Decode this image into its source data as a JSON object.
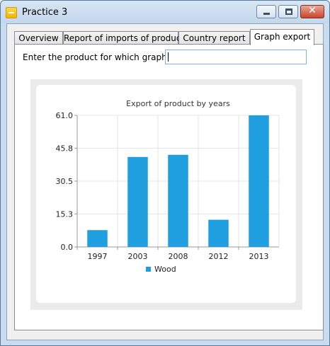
{
  "window": {
    "title": "Practice 3",
    "close_glyph": "✕"
  },
  "tabs": [
    {
      "label": "Overview",
      "active": false
    },
    {
      "label": "Report of imports of product",
      "active": false
    },
    {
      "label": "Country report",
      "active": false
    },
    {
      "label": "Graph export",
      "active": true
    }
  ],
  "form": {
    "prompt": "Enter the product for which graph for:",
    "input_value": ""
  },
  "colors": {
    "bar": "#1f9fe0",
    "grid": "#e4e4e4",
    "axis": "#9a9a9a"
  },
  "chart_data": {
    "type": "bar",
    "title": "Export of product by years",
    "categories": [
      "1997",
      "2003",
      "2008",
      "2012",
      "2013"
    ],
    "series": [
      {
        "name": "Wood",
        "values": [
          7.8,
          41.7,
          42.7,
          12.6,
          61.0
        ]
      }
    ],
    "yticks": [
      "0.0",
      "15.3",
      "30.5",
      "45.8",
      "61.0"
    ],
    "ylim": [
      0,
      61.0
    ],
    "legend": "bottom",
    "grid": true
  }
}
